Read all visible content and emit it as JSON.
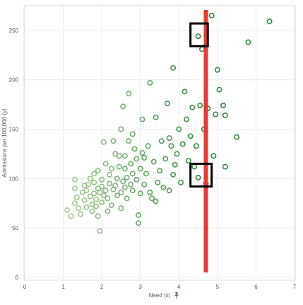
{
  "chart_data": {
    "type": "scatter",
    "title": "",
    "xlabel": "Need (x)",
    "ylabel": "Admissions per 100,000 (y)",
    "xlim": [
      0,
      7
    ],
    "ylim": [
      0,
      275
    ],
    "xticks": [
      0,
      1,
      2,
      3,
      4,
      5,
      6,
      7
    ],
    "yticks": [
      0,
      50,
      100,
      150,
      200,
      250
    ],
    "grid": true,
    "legend": "none",
    "marker": "hollow-circle",
    "color_scale": {
      "low": "#a9cf98",
      "high": "#2e8a3c",
      "by": "x"
    },
    "reference_line": {
      "x": 4.7,
      "color": "#e83a2e"
    },
    "highlight_boxes": [
      {
        "x_range": [
          4.3,
          4.75
        ],
        "y_range": [
          234,
          257
        ]
      },
      {
        "x_range": [
          4.3,
          4.85
        ],
        "y_range": [
          92,
          115
        ]
      }
    ],
    "series": [
      {
        "points": [
          [
            1.1,
            68
          ],
          [
            1.2,
            62
          ],
          [
            1.3,
            75
          ],
          [
            1.3,
            90
          ],
          [
            1.3,
            99
          ],
          [
            1.35,
            81
          ],
          [
            1.4,
            70
          ],
          [
            1.45,
            64
          ],
          [
            1.5,
            86
          ],
          [
            1.55,
            93
          ],
          [
            1.55,
            78
          ],
          [
            1.6,
            71
          ],
          [
            1.6,
            88
          ],
          [
            1.65,
            94
          ],
          [
            1.7,
            82
          ],
          [
            1.7,
            100
          ],
          [
            1.75,
            74
          ],
          [
            1.75,
            67
          ],
          [
            1.8,
            85
          ],
          [
            1.8,
            96
          ],
          [
            1.8,
            105
          ],
          [
            1.85,
            79
          ],
          [
            1.85,
            72
          ],
          [
            1.9,
            90
          ],
          [
            1.9,
            108
          ],
          [
            1.9,
            62
          ],
          [
            1.95,
            86
          ],
          [
            1.95,
            47
          ],
          [
            2.0,
            76
          ],
          [
            2.0,
            99
          ],
          [
            2.0,
            92
          ],
          [
            2.05,
            83
          ],
          [
            2.05,
            137
          ],
          [
            2.1,
            88
          ],
          [
            2.1,
            115
          ],
          [
            2.15,
            67
          ],
          [
            2.15,
            80
          ],
          [
            2.2,
            95
          ],
          [
            2.2,
            104
          ],
          [
            2.25,
            110
          ],
          [
            2.25,
            73
          ],
          [
            2.3,
            89
          ],
          [
            2.3,
            138
          ],
          [
            2.35,
            93
          ],
          [
            2.35,
            125
          ],
          [
            2.4,
            83
          ],
          [
            2.4,
            100
          ],
          [
            2.45,
            112
          ],
          [
            2.45,
            123
          ],
          [
            2.5,
            70
          ],
          [
            2.5,
            86
          ],
          [
            2.5,
            150
          ],
          [
            2.55,
            97
          ],
          [
            2.55,
            173
          ],
          [
            2.6,
            91
          ],
          [
            2.6,
            110
          ],
          [
            2.6,
            123
          ],
          [
            2.65,
            80
          ],
          [
            2.65,
            101
          ],
          [
            2.7,
            138
          ],
          [
            2.7,
            186
          ],
          [
            2.75,
            94
          ],
          [
            2.75,
            115
          ],
          [
            2.8,
            88
          ],
          [
            2.8,
            105
          ],
          [
            2.8,
            145
          ],
          [
            2.85,
            130
          ],
          [
            2.9,
            99
          ],
          [
            2.9,
            120
          ],
          [
            2.95,
            55
          ],
          [
            2.95,
            63
          ],
          [
            3.0,
            85
          ],
          [
            3.0,
            110
          ],
          [
            3.05,
            126
          ],
          [
            3.05,
            160
          ],
          [
            3.1,
            94
          ],
          [
            3.1,
            121
          ],
          [
            3.15,
            105
          ],
          [
            3.2,
            133
          ],
          [
            3.25,
            86
          ],
          [
            3.25,
            197
          ],
          [
            3.3,
            80
          ],
          [
            3.35,
            117
          ],
          [
            3.4,
            77
          ],
          [
            3.4,
            162
          ],
          [
            3.45,
            96
          ],
          [
            3.5,
            108
          ],
          [
            3.55,
            138
          ],
          [
            3.6,
            91
          ],
          [
            3.65,
            120
          ],
          [
            3.7,
            176
          ],
          [
            3.75,
            88
          ],
          [
            3.75,
            141
          ],
          [
            3.8,
            133
          ],
          [
            3.85,
            104
          ],
          [
            3.85,
            212
          ],
          [
            3.9,
            114
          ],
          [
            3.95,
            125
          ],
          [
            4.0,
            150
          ],
          [
            4.05,
            96
          ],
          [
            4.1,
            135
          ],
          [
            4.15,
            188
          ],
          [
            4.2,
            160
          ],
          [
            4.25,
            118
          ],
          [
            4.3,
            143
          ],
          [
            4.35,
            172
          ],
          [
            4.4,
            112
          ],
          [
            4.45,
            133
          ],
          [
            4.5,
            101
          ],
          [
            4.5,
            244
          ],
          [
            4.55,
            174
          ],
          [
            4.6,
            231
          ],
          [
            4.65,
            150
          ],
          [
            4.7,
            95
          ],
          [
            4.75,
            171
          ],
          [
            4.85,
            265
          ],
          [
            4.9,
            123
          ],
          [
            4.95,
            165
          ],
          [
            5.0,
            210
          ],
          [
            5.05,
            190
          ],
          [
            5.15,
            174
          ],
          [
            5.2,
            112
          ],
          [
            5.2,
            164
          ],
          [
            5.5,
            142
          ],
          [
            5.8,
            238
          ],
          [
            6.35,
            259
          ]
        ]
      }
    ]
  }
}
